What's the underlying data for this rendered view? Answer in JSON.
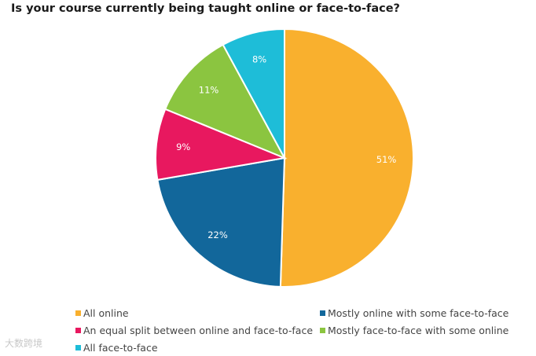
{
  "chart_data": {
    "type": "pie",
    "title": "Is your course currently being taught online or face-to-face?",
    "slices": [
      {
        "label": "All online",
        "value": 51,
        "display": "51%",
        "color": "#F9B02E"
      },
      {
        "label": "Mostly online with some face-to-face",
        "value": 22,
        "display": "22%",
        "color": "#12679B"
      },
      {
        "label": "An equal split between online and face-to-face",
        "value": 9,
        "display": "9%",
        "color": "#E8185F"
      },
      {
        "label": "Mostly face-to-face with some online",
        "value": 11,
        "display": "11%",
        "color": "#8BC540"
      },
      {
        "label": "All face-to-face",
        "value": 8,
        "display": "8%",
        "color": "#1EBDD8"
      }
    ],
    "legend_order": [
      0,
      1,
      2,
      3,
      4
    ],
    "legend_position": "bottom"
  },
  "watermark": "大数跨境"
}
